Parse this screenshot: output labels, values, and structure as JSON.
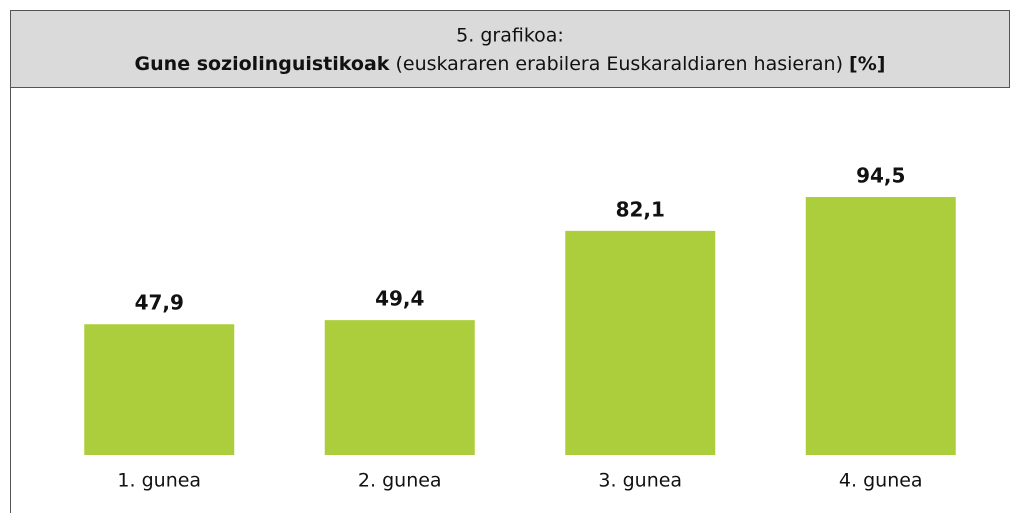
{
  "chart_data": {
    "type": "bar",
    "title": {
      "line1": "5. grafikoa:",
      "bold": "Gune soziolinguistikoak",
      "normal": " (euskararen erabilera Euskaraldiaren hasieran) ",
      "unit": "[%]"
    },
    "categories": [
      "1. gunea",
      "2. gunea",
      "3. gunea",
      "4. gunea"
    ],
    "values": [
      47.9,
      49.4,
      82.1,
      94.5
    ],
    "value_labels": [
      "47,9",
      "49,4",
      "82,1",
      "94,5"
    ],
    "color": "#acce3d"
  }
}
